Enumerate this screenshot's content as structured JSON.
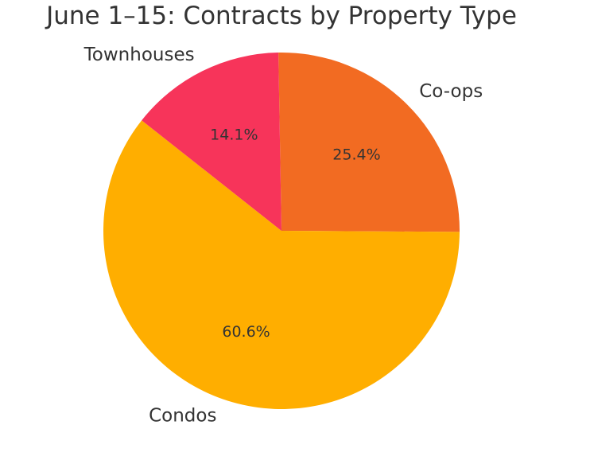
{
  "chart_data": {
    "type": "pie",
    "title": "June 1–15: Contracts by Property Type",
    "slices": [
      {
        "label": "Co-ops",
        "value": 25.4,
        "pct_label": "25.4%",
        "color": "#F26B22"
      },
      {
        "label": "Condos",
        "value": 60.6,
        "pct_label": "60.6%",
        "color": "#FFAE00"
      },
      {
        "label": "Townhouses",
        "value": 14.1,
        "pct_label": "14.1%",
        "color": "#F7345A"
      }
    ],
    "start_angle_deg": 91,
    "direction": "clockwise",
    "text_color": "#333333"
  }
}
